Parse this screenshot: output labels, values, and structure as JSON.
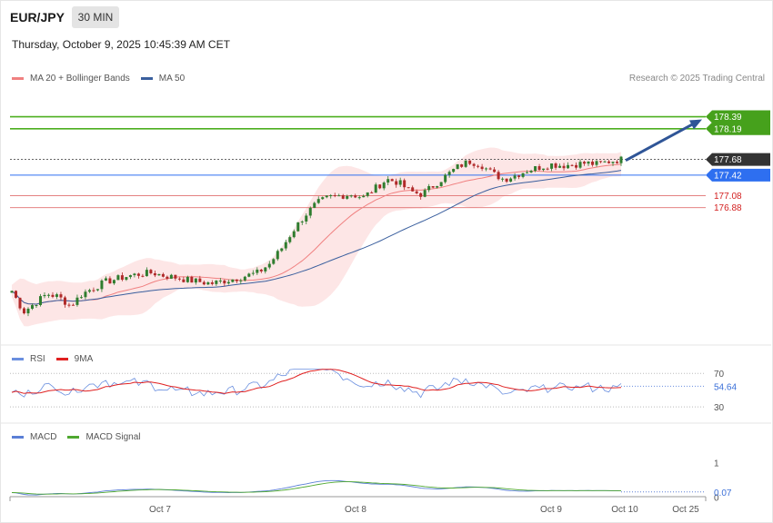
{
  "header": {
    "symbol": "EUR/JPY",
    "interval": "30 MIN",
    "datetime": "Thursday, October 9, 2025 10:45:39 AM CET"
  },
  "legend": {
    "ma20": "MA 20 + Bollinger Bands",
    "ma50": "MA 50",
    "copyright": "Research © 2025 Trading Central"
  },
  "colors": {
    "up": "#2f7d2f",
    "down": "#b02a2a",
    "ma20": "#f08080",
    "ma50": "#3a5f9e",
    "band": "#fde3e3",
    "resistance": "#4caf1f",
    "support": "#e07070",
    "pivot": "#2e6ff0",
    "arrow": "#2f5597",
    "rsi": "#6a8fdf",
    "rsi9": "#e02020",
    "macd": "#5b7fd6",
    "macd_signal": "#4fa830"
  },
  "levels": {
    "r2": "178.39",
    "r1": "178.19",
    "last": "177.68",
    "pivot": "177.42",
    "s1": "177.08",
    "s2": "176.88"
  },
  "rsi_panel": {
    "label": "RSI",
    "ma_label": "9MA",
    "upper": "70",
    "lower": "30",
    "value": "54.64"
  },
  "macd_panel": {
    "label": "MACD",
    "signal_label": "MACD Signal",
    "tick_top": "1",
    "tick_zero": "0",
    "value": "0.07"
  },
  "x_axis": [
    "Oct 7",
    "Oct 8",
    "Oct 9",
    "Oct 10",
    "Oct 25"
  ],
  "chart_data": {
    "type": "candlestick",
    "title": "EUR/JPY",
    "interval": "30 MIN",
    "ylim": [
      174.6,
      178.85
    ],
    "close_path": [
      175.5,
      175.15,
      175.3,
      175.45,
      175.4,
      175.25,
      175.45,
      175.55,
      175.65,
      175.7,
      175.75,
      175.78,
      175.8,
      175.75,
      175.72,
      175.68,
      175.65,
      175.62,
      175.66,
      175.7,
      175.75,
      175.8,
      175.95,
      176.2,
      176.5,
      176.75,
      176.95,
      177.05,
      177.08,
      177.1,
      177.05,
      177.2,
      177.35,
      177.3,
      177.15,
      177.1,
      177.25,
      177.4,
      177.55,
      177.65,
      177.6,
      177.45,
      177.35,
      177.42,
      177.5,
      177.55,
      177.6,
      177.58,
      177.6,
      177.62,
      177.6,
      177.65,
      177.68
    ],
    "levels": [
      178.39,
      178.19,
      177.68,
      177.42,
      177.08,
      176.88
    ],
    "rsi": {
      "last": 54.64,
      "bounds": [
        30,
        70
      ]
    },
    "macd": {
      "last": 0.07
    }
  }
}
